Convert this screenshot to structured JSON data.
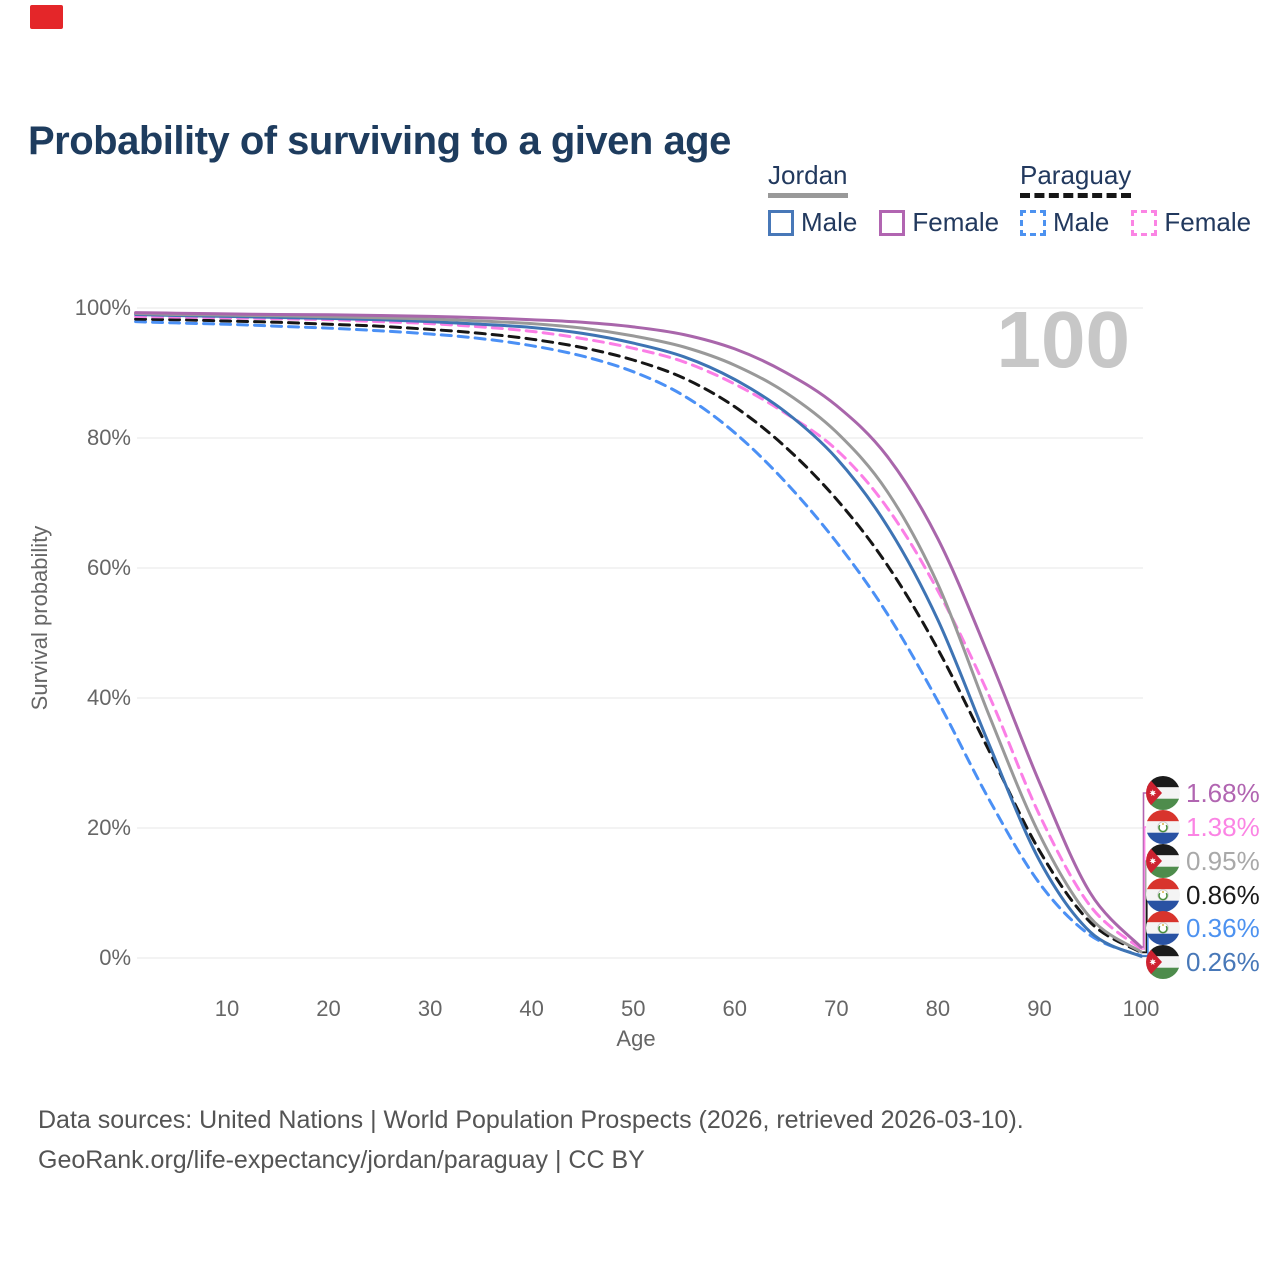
{
  "badge": {
    "color": "#e42629"
  },
  "title": "Probability of surviving to a given age",
  "watermark": "100",
  "legend": {
    "groups": [
      {
        "country": "Jordan",
        "underline_style": "solid",
        "underline_color": "#999999",
        "items": [
          {
            "label": "Male",
            "color": "#4878b8",
            "dashed": false
          },
          {
            "label": "Female",
            "color": "#b165b1",
            "dashed": false
          }
        ]
      },
      {
        "country": "Paraguay",
        "underline_style": "dashed",
        "underline_color": "#161616",
        "items": [
          {
            "label": "Male",
            "color": "#4d92f0",
            "dashed": true
          },
          {
            "label": "Female",
            "color": "#fb84e4",
            "dashed": true
          }
        ]
      }
    ]
  },
  "axes": {
    "y_label": "Survival probability",
    "x_label": "Age",
    "y_ticks": [
      "100%",
      "80%",
      "60%",
      "40%",
      "20%",
      "0%"
    ],
    "y_tick_values": [
      100,
      80,
      60,
      40,
      20,
      0
    ],
    "x_ticks": [
      10,
      20,
      30,
      40,
      50,
      60,
      70,
      80,
      90,
      100
    ]
  },
  "end_labels": [
    {
      "series": "Jordan Female",
      "value": "1.68%",
      "color": "#b165b1",
      "flag": "jordan"
    },
    {
      "series": "Paraguay Female",
      "value": "1.38%",
      "color": "#fb84e4",
      "flag": "paraguay"
    },
    {
      "series": "Jordan",
      "value": "0.95%",
      "color": "#a9a9a9",
      "flag": "jordan"
    },
    {
      "series": "Paraguay",
      "value": "0.86%",
      "color": "#1a1a1a",
      "flag": "paraguay"
    },
    {
      "series": "Paraguay Male",
      "value": "0.36%",
      "color": "#4d92f0",
      "flag": "paraguay"
    },
    {
      "series": "Jordan Male",
      "value": "0.26%",
      "color": "#4878b8",
      "flag": "jordan"
    }
  ],
  "source": {
    "line1": "Data sources: United Nations | World Population Prospects (2026, retrieved 2026-03-10).",
    "line2": "GeoRank.org/life-expectancy/jordan/paraguay | CC BY"
  },
  "chart_data": {
    "type": "line",
    "title": "Probability of surviving to a given age",
    "xlabel": "Age",
    "ylabel": "Survival probability",
    "x_range": [
      1,
      100
    ],
    "y_range": [
      0,
      100
    ],
    "grid": "horizontal",
    "legend_position": "top-right",
    "x": [
      1,
      5,
      10,
      15,
      20,
      25,
      30,
      35,
      40,
      45,
      50,
      55,
      60,
      65,
      70,
      75,
      80,
      85,
      90,
      95,
      100
    ],
    "series": [
      {
        "name": "Paraguay Male",
        "color": "#4b90f5",
        "dashed": true,
        "end_label": "0.36%",
        "values": [
          97.9,
          97.7,
          97.5,
          97.2,
          96.9,
          96.5,
          96.0,
          95.3,
          94.2,
          92.6,
          90.2,
          86.5,
          80.8,
          73.2,
          64.0,
          53.0,
          39.5,
          24.5,
          11.5,
          3.5,
          0.36
        ]
      },
      {
        "name": "Paraguay",
        "color": "#161616",
        "dashed": true,
        "end_label": "0.86%",
        "values": [
          98.3,
          98.2,
          98.0,
          97.8,
          97.5,
          97.2,
          96.7,
          96.1,
          95.2,
          93.9,
          92.0,
          89.2,
          84.8,
          78.6,
          70.6,
          60.5,
          47.5,
          32.0,
          16.5,
          5.5,
          0.86
        ]
      },
      {
        "name": "Paraguay Female",
        "color": "#fb7ee6",
        "dashed": true,
        "end_label": "1.38%",
        "values": [
          98.7,
          98.6,
          98.5,
          98.35,
          98.2,
          97.9,
          97.6,
          97.1,
          96.4,
          95.3,
          93.8,
          91.7,
          88.3,
          83.8,
          78.2,
          69.3,
          56.5,
          40.5,
          22.0,
          8.0,
          1.38
        ]
      },
      {
        "name": "Jordan Male",
        "color": "#3e74b4",
        "dashed": false,
        "end_label": "0.26%",
        "values": [
          99.0,
          98.85,
          98.7,
          98.55,
          98.4,
          98.2,
          97.9,
          97.5,
          97.0,
          96.1,
          94.6,
          92.5,
          89.0,
          84.0,
          76.9,
          66.5,
          52.0,
          33.0,
          15.0,
          4.0,
          0.26
        ]
      },
      {
        "name": "Jordan",
        "color": "#999999",
        "dashed": false,
        "end_label": "0.95%",
        "values": [
          99.15,
          99.0,
          98.9,
          98.8,
          98.65,
          98.5,
          98.3,
          98.0,
          97.6,
          96.9,
          95.7,
          94.0,
          91.2,
          87.0,
          80.9,
          71.8,
          57.5,
          37.5,
          19.0,
          6.2,
          0.95
        ]
      },
      {
        "name": "Jordan Female",
        "color": "#a966ab",
        "dashed": false,
        "end_label": "1.68%",
        "values": [
          99.3,
          99.2,
          99.1,
          99.0,
          98.95,
          98.85,
          98.7,
          98.5,
          98.2,
          97.8,
          97.1,
          95.9,
          93.7,
          90.1,
          85.0,
          77.2,
          64.5,
          46.5,
          27.0,
          10.0,
          1.68
        ]
      }
    ]
  }
}
